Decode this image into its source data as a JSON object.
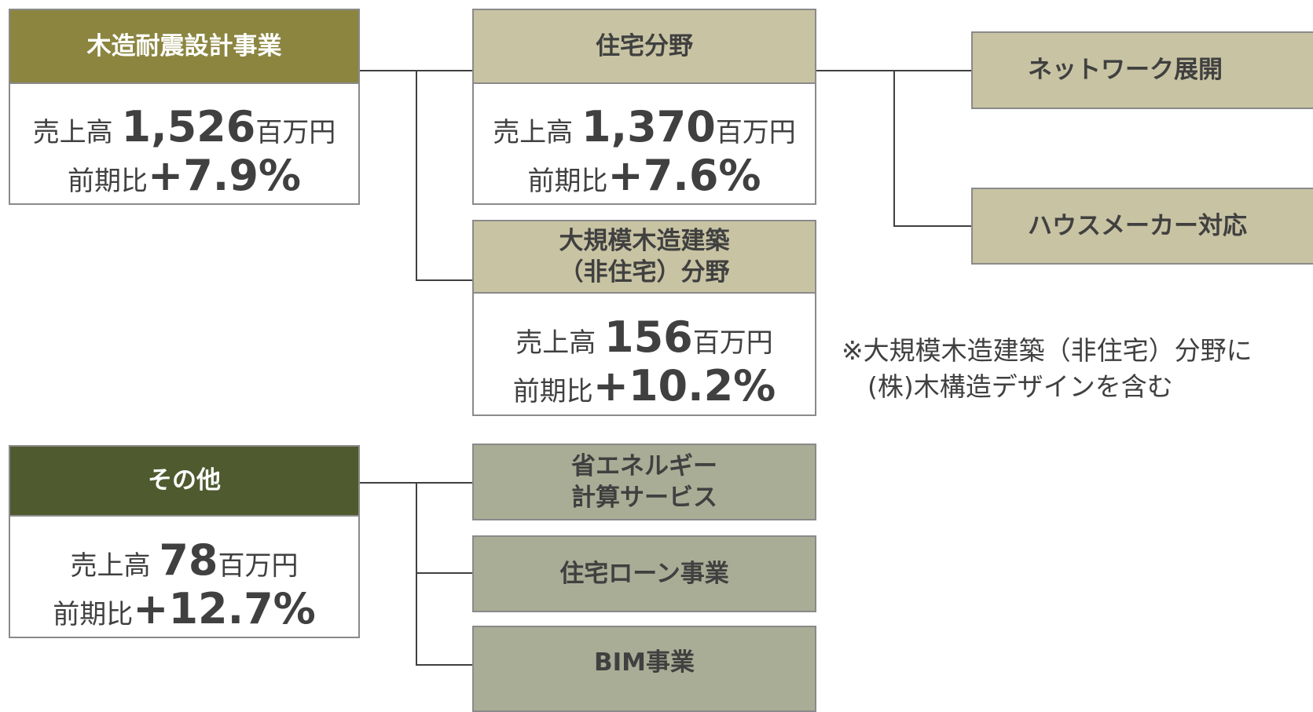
{
  "segments": [
    {
      "header": "木造耐震設計事業",
      "sales_label": "売上高",
      "sales": "1,526",
      "unit": "百万円",
      "yoy_label": "前期比",
      "yoy": "+7.9%"
    },
    {
      "header": "住宅分野",
      "sales_label": "売上高",
      "sales": "1,370",
      "unit": "百万円",
      "yoy_label": "前期比",
      "yoy": "+7.6%"
    },
    {
      "header": "大規模木造建築\n（非住宅）分野",
      "sales_label": "売上高",
      "sales": "156",
      "unit": "百万円",
      "yoy_label": "前期比",
      "yoy": "+10.2%"
    },
    {
      "header": "その他",
      "sales_label": "売上高",
      "sales": "78",
      "unit": "百万円",
      "yoy_label": "前期比",
      "yoy": "+12.7%"
    }
  ],
  "branches": [
    "ネットワーク展開",
    "ハウスメーカー対応",
    "省エネルギー\n計算サービス",
    "住宅ローン事業",
    "BIM事業"
  ],
  "note": "※大規模木造建築（非住宅）分野に\n　(株)木構造デザインを含む"
}
